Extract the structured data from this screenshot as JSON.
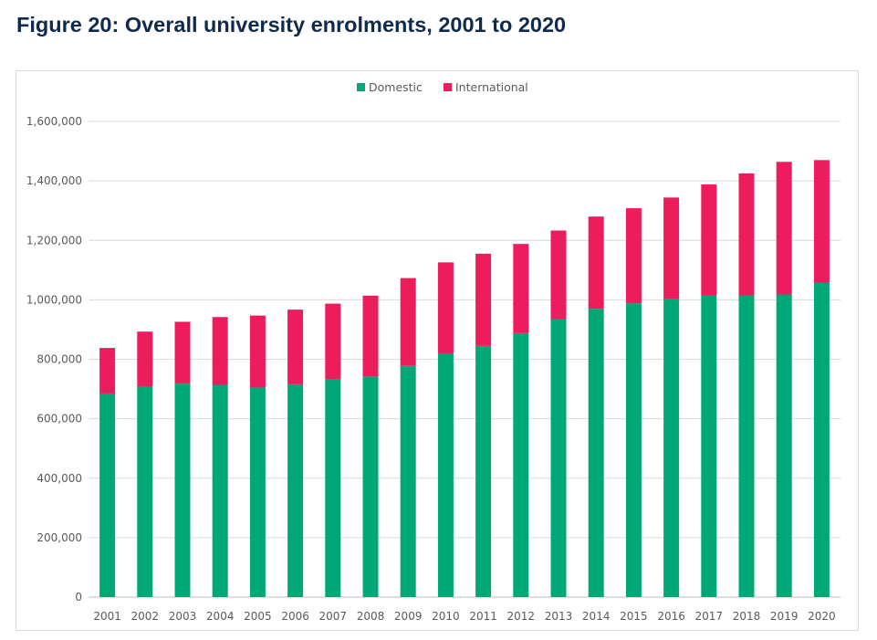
{
  "figure_title": "Figure 20: Overall university enrolments, 2001 to 2020",
  "chart_data": {
    "type": "bar",
    "stacked": true,
    "title": "Figure 20: Overall university enrolments, 2001 to 2020",
    "xlabel": "",
    "ylabel": "",
    "ylim": [
      0,
      1600000
    ],
    "yticks": [
      0,
      200000,
      400000,
      600000,
      800000,
      1000000,
      1200000,
      1400000,
      1600000
    ],
    "ytick_labels": [
      "0",
      "200,000",
      "400,000",
      "600,000",
      "800,000",
      "1,000,000",
      "1,200,000",
      "1,400,000",
      "1,600,000"
    ],
    "grid": true,
    "legend_position": "top-center",
    "categories": [
      "2001",
      "2002",
      "2003",
      "2004",
      "2005",
      "2006",
      "2007",
      "2008",
      "2009",
      "2010",
      "2011",
      "2012",
      "2013",
      "2014",
      "2015",
      "2016",
      "2017",
      "2018",
      "2019",
      "2020"
    ],
    "series": [
      {
        "name": "Domestic",
        "color": "#00a878",
        "values": [
          685000,
          708000,
          718000,
          714000,
          705000,
          716000,
          732000,
          742000,
          778000,
          820000,
          845000,
          888000,
          935000,
          970000,
          988000,
          1002000,
          1015000,
          1015000,
          1018000,
          1058000
        ]
      },
      {
        "name": "International",
        "color": "#ed1c5c",
        "values": [
          153000,
          185000,
          208000,
          228000,
          242000,
          251000,
          255000,
          272000,
          295000,
          306000,
          310000,
          300000,
          298000,
          310000,
          320000,
          342000,
          373000,
          410000,
          446000,
          412000
        ]
      }
    ]
  },
  "colors": {
    "title_color": "#0f2a4a",
    "grid_color": "#d9d9d9",
    "tick_text_color": "#595959"
  }
}
